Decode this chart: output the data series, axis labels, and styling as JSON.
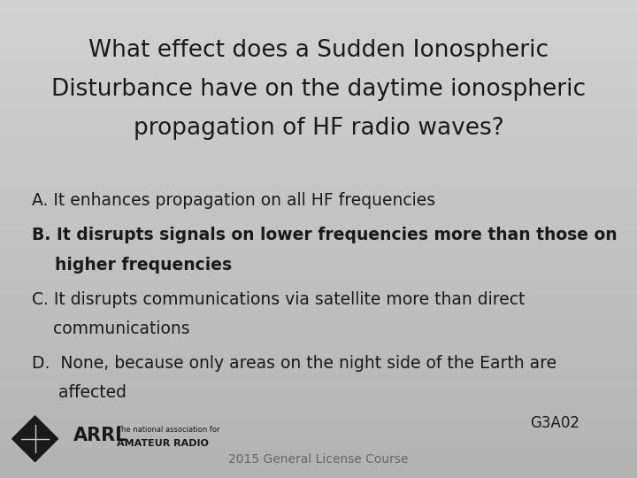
{
  "title_line1": "What effect does a Sudden Ionospheric",
  "title_line2": "Disturbance have on the daytime ionospheric",
  "title_line3": "propagation of HF radio waves?",
  "answer_A": "A. It enhances propagation on all HF frequencies",
  "answer_B_line1": "B. It disrupts signals on lower frequencies more than those on",
  "answer_B_line2": "    higher frequencies",
  "answer_C_line1": "C. It disrupts communications via satellite more than direct",
  "answer_C_line2": "    communications",
  "answer_D_line1": "D.  None, because only areas on the night side of the Earth are",
  "answer_D_line2": "     affected",
  "code": "G3A02",
  "footer": "2015 General License Course",
  "text_color": "#1a1a1a",
  "title_fontsize": 19,
  "answer_fontsize": 13.5,
  "code_fontsize": 12,
  "footer_fontsize": 10
}
